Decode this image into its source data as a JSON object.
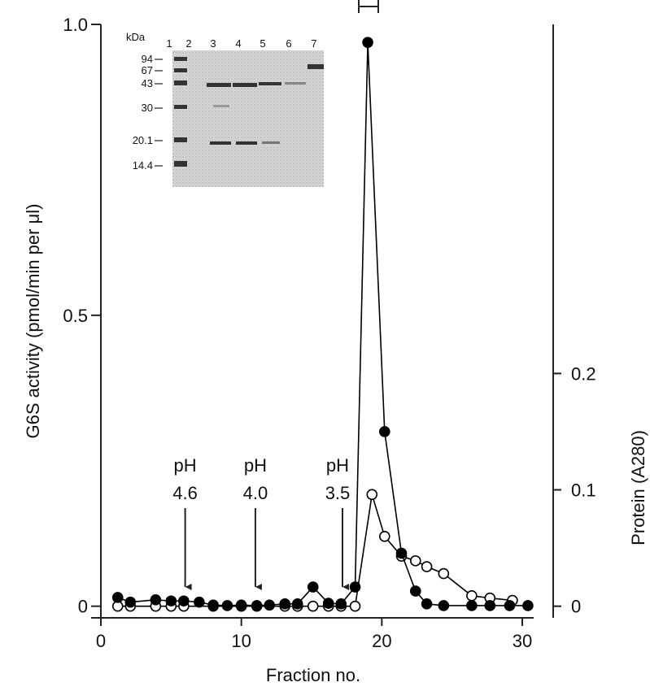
{
  "chart_data": {
    "type": "line",
    "xlabel": "Fraction no.",
    "ylabel": "G6S activity (pmol/min per μl)",
    "y2label": "Protein (A280)",
    "xlim": [
      0,
      32.2
    ],
    "xticks": [
      0,
      10,
      20,
      30
    ],
    "ylim": [
      -0.02,
      1.0
    ],
    "yticks": [
      0,
      0.5,
      {
        "value": 1,
        "label": "1.0"
      }
    ],
    "y2lim": [
      -0.01,
      0.5
    ],
    "y2ticks": [
      0,
      0.1,
      0.2
    ],
    "series": [
      {
        "color": "#000000",
        "marker_fill": "#000000",
        "x": [
          1.2,
          2.1,
          3.9,
          5.0,
          5.9,
          7.0,
          8.0,
          9.0,
          10.0,
          11.1,
          12.0,
          13.1,
          14.0,
          15.1,
          16.2,
          17.1,
          18.1,
          19.0,
          20.2,
          21.4,
          22.4,
          23.2,
          24.4,
          26.4,
          27.7,
          29.1,
          30.4
        ],
        "values": [
          0.015,
          0.007,
          0.011,
          0.009,
          0.009,
          0.007,
          0.002,
          0.001,
          0.002,
          0.001,
          0.002,
          0.004,
          0.004,
          0.033,
          0.005,
          0.004,
          0.033,
          0.969,
          0.3,
          0.091,
          0.026,
          0.004,
          0.001,
          0.001,
          0.001,
          0.001,
          0.001
        ]
      },
      {
        "color": "#000000",
        "marker_fill": "#ffffff",
        "axis": "y2",
        "x": [
          1.2,
          2.1,
          3.9,
          5.0,
          5.9,
          8.0,
          10.0,
          11.1,
          13.1,
          14.0,
          15.1,
          16.2,
          17.1,
          18.1,
          19.3,
          20.2,
          21.4,
          22.4,
          23.2,
          24.4,
          26.4,
          27.7,
          29.3
        ],
        "values": [
          0,
          0,
          0,
          0,
          0,
          0,
          0,
          0,
          0,
          0,
          0,
          0,
          0,
          0,
          0.096,
          0.06,
          0.043,
          0.039,
          0.034,
          0.028,
          0.009,
          0.007,
          0.005
        ]
      }
    ],
    "annotations": [
      {
        "lines": [
          "pH",
          "4.6"
        ],
        "x": 6.0
      },
      {
        "lines": [
          "pH",
          "4.0"
        ],
        "x": 11.0
      },
      {
        "lines": [
          "pH",
          "3.5"
        ],
        "x": 17.2
      }
    ],
    "inset": {
      "unit": "kDa",
      "lanes": [
        "1",
        "2",
        "3",
        "4",
        "5",
        "6",
        "7"
      ],
      "markers": [
        "94",
        "67",
        "43",
        "30",
        "20.1",
        "14.4"
      ]
    }
  }
}
